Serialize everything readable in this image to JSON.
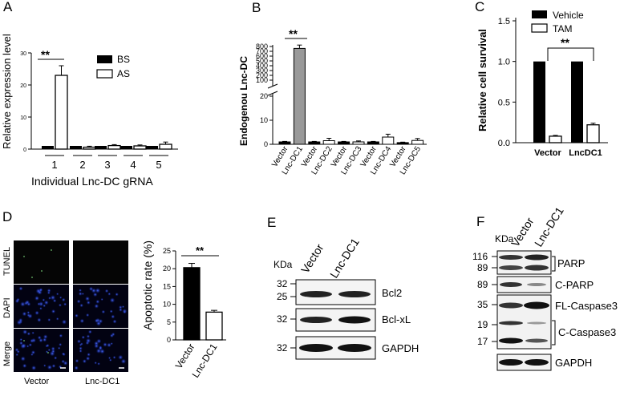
{
  "panels": {
    "A": "A",
    "B": "B",
    "C": "C",
    "D": "D",
    "E": "E",
    "F": "F"
  },
  "chart_data": [
    {
      "panel": "A",
      "type": "bar",
      "ylabel": "Relative expression level",
      "xlabel": "Individual Lnc-DC gRNA",
      "categories": [
        "1",
        "2",
        "3",
        "4",
        "5"
      ],
      "yticks": [
        0,
        10,
        20,
        30
      ],
      "ylim": [
        0,
        30
      ],
      "series": [
        {
          "name": "BS",
          "color": "#000000",
          "values": [
            1.0,
            1.0,
            1.0,
            1.0,
            1.0
          ]
        },
        {
          "name": "AS",
          "color": "#ffffff",
          "values": [
            23.0,
            0.6,
            1.1,
            1.0,
            1.5
          ],
          "errors": [
            3.0,
            0.3,
            0.3,
            0.3,
            0.7
          ]
        }
      ],
      "significance": "**",
      "legend": "right"
    },
    {
      "panel": "B",
      "type": "bar",
      "ylabel": "Endogenou Lnc-DC",
      "categories": [
        "Vector",
        "Lnc-DC1",
        "Vector",
        "Lnc-DC2",
        "Vector",
        "Lnc-DC3",
        "Vector",
        "Lnc-DC4",
        "Vector",
        "Lnc-DC5"
      ],
      "yticks_upper": [
        100,
        200,
        300,
        400,
        500,
        600,
        700,
        800
      ],
      "yticks_lower": [
        0,
        10,
        20
      ],
      "values": [
        1,
        760,
        1,
        1.5,
        1,
        1,
        1,
        3,
        0.7,
        1.6
      ],
      "errors": [
        0.2,
        70,
        0.2,
        1.0,
        0.2,
        0.4,
        0.2,
        1.2,
        0.2,
        0.8
      ],
      "colors": [
        "#000000",
        "#999999",
        "#000000",
        "#ffffff",
        "#000000",
        "#ffffff",
        "#000000",
        "#ffffff",
        "#000000",
        "#ffffff"
      ],
      "significance": "**",
      "broken_axis": true
    },
    {
      "panel": "C",
      "type": "bar",
      "ylabel": "Relative cell survival",
      "categories": [
        "Vector",
        "LncDC1"
      ],
      "yticks": [
        "0.0",
        "0.5",
        "1.0",
        "1.5"
      ],
      "ylim": [
        0,
        1.5
      ],
      "series": [
        {
          "name": "Vehicle",
          "color": "#000000",
          "values": [
            1.0,
            1.0
          ]
        },
        {
          "name": "TAM",
          "color": "#ffffff",
          "values": [
            0.08,
            0.22
          ],
          "errors": [
            0.01,
            0.02
          ]
        }
      ],
      "significance": "**",
      "legend": "top-right"
    },
    {
      "panel": "D",
      "type": "bar",
      "ylabel": "Apoptotic rate (%)",
      "categories": [
        "Vector",
        "Lnc-DC1"
      ],
      "yticks": [
        0,
        5,
        10,
        15,
        20,
        25
      ],
      "ylim": [
        0,
        25
      ],
      "values": [
        20.3,
        7.8
      ],
      "errors": [
        1.2,
        0.5
      ],
      "colors": [
        "#000000",
        "#ffffff"
      ],
      "significance": "**"
    }
  ],
  "micro": {
    "rows": [
      "TUNEL",
      "DAPI",
      "Merge"
    ],
    "cols": [
      "Vector",
      "Lnc-DC1"
    ]
  },
  "blotE": {
    "kda": "KDa",
    "lanes": [
      "Vector",
      "Lnc-DC1"
    ],
    "markers": [
      "32",
      "25",
      "32",
      "32"
    ],
    "labels": [
      "Bcl2",
      "Bcl-xL",
      "GAPDH"
    ]
  },
  "blotF": {
    "kda": "KDa",
    "lanes": [
      "Vector",
      "Lnc-DC1"
    ],
    "markers": [
      "116",
      "89",
      "89",
      "35",
      "19",
      "17"
    ],
    "labels": [
      "PARP",
      "C-PARP",
      "FL-Caspase3",
      "C-Caspase3",
      "GAPDH"
    ]
  }
}
